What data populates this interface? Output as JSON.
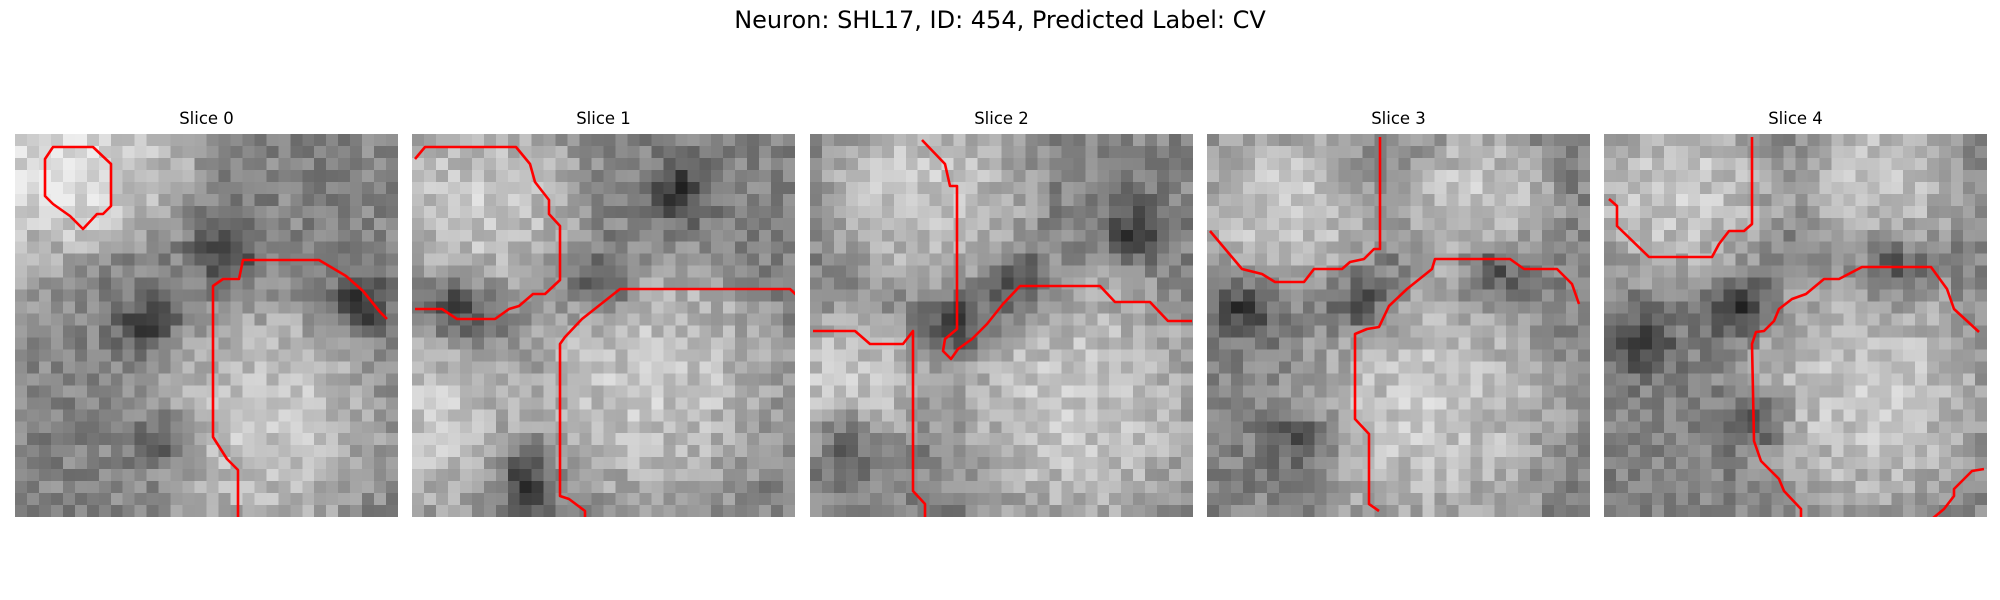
{
  "figure": {
    "title": "Neuron: SHL17, ID: 454, Predicted Label: CV",
    "colors": {
      "boundary": "#ff0000",
      "background": "#ffffff"
    }
  },
  "panels": [
    {
      "title": "Slice 0",
      "seed": 11,
      "blobs": [
        [
          -0.1,
          0.15,
          0.4,
          0.4
        ],
        [
          0.65,
          0.75,
          0.38,
          0.38
        ],
        [
          0.25,
          0.05,
          0.3,
          0.3
        ]
      ],
      "dark": [
        [
          0.35,
          0.5
        ],
        [
          0.55,
          0.3
        ],
        [
          0.9,
          0.45
        ],
        [
          0.4,
          0.8
        ]
      ]
    },
    {
      "title": "Slice 1",
      "seed": 23,
      "blobs": [
        [
          0.18,
          0.18,
          0.34,
          0.3
        ],
        [
          0.62,
          0.65,
          0.42,
          0.4
        ],
        [
          0.05,
          0.75,
          0.28,
          0.3
        ]
      ],
      "dark": [
        [
          0.5,
          0.4
        ],
        [
          0.7,
          0.15
        ],
        [
          0.12,
          0.45
        ],
        [
          0.3,
          0.9
        ]
      ]
    },
    {
      "title": "Slice 2",
      "seed": 37,
      "blobs": [
        [
          0.3,
          0.15,
          0.34,
          0.3
        ],
        [
          0.7,
          0.7,
          0.42,
          0.42
        ],
        [
          0.1,
          0.65,
          0.25,
          0.25
        ]
      ],
      "dark": [
        [
          0.4,
          0.5
        ],
        [
          0.85,
          0.25
        ],
        [
          0.1,
          0.8
        ],
        [
          0.55,
          0.4
        ]
      ]
    },
    {
      "title": "Slice 3",
      "seed": 41,
      "blobs": [
        [
          0.2,
          0.2,
          0.3,
          0.28
        ],
        [
          0.58,
          0.72,
          0.42,
          0.4
        ],
        [
          0.7,
          0.18,
          0.25,
          0.25
        ]
      ],
      "dark": [
        [
          0.4,
          0.45
        ],
        [
          0.75,
          0.35
        ],
        [
          0.25,
          0.8
        ],
        [
          0.1,
          0.45
        ]
      ]
    },
    {
      "title": "Slice 4",
      "seed": 53,
      "blobs": [
        [
          0.2,
          0.15,
          0.32,
          0.3
        ],
        [
          0.68,
          0.68,
          0.4,
          0.4
        ],
        [
          0.72,
          0.12,
          0.26,
          0.26
        ]
      ],
      "dark": [
        [
          0.35,
          0.45
        ],
        [
          0.4,
          0.75
        ],
        [
          0.75,
          0.35
        ],
        [
          0.1,
          0.55
        ]
      ]
    }
  ]
}
